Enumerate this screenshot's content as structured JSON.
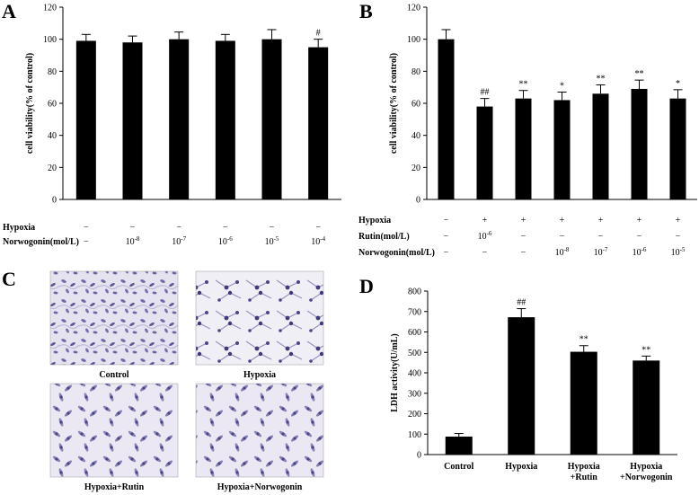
{
  "panels": {
    "a": "A",
    "b": "B",
    "c": "C",
    "d": "D"
  },
  "chart_data": [
    {
      "panel": "A",
      "type": "bar",
      "ylabel": "cell viability(% of control)",
      "ylim": [
        0,
        120
      ],
      "yticks": [
        0,
        20,
        40,
        60,
        80,
        100,
        120
      ],
      "values": [
        99,
        98,
        100,
        99,
        100,
        95
      ],
      "errors": [
        4,
        4,
        4.5,
        4,
        6,
        5
      ],
      "annotations": [
        "",
        "",
        "",
        "",
        "",
        "#"
      ],
      "rows": [
        {
          "label": "Hypoxia",
          "cells": [
            "−",
            "−",
            "−",
            "−",
            "−",
            "−"
          ]
        },
        {
          "label": "Norwogonin(mol/L)",
          "cells": [
            "−",
            "10",
            "10",
            "10",
            "10",
            "10"
          ],
          "sup": [
            "",
            "-8",
            "-7",
            "-6",
            "-5",
            "-4"
          ]
        }
      ]
    },
    {
      "panel": "B",
      "type": "bar",
      "ylabel": "cell viability(% of control)",
      "ylim": [
        0,
        120
      ],
      "yticks": [
        0,
        20,
        40,
        60,
        80,
        100,
        120
      ],
      "values": [
        100,
        58,
        63,
        62,
        66,
        69,
        63
      ],
      "errors": [
        6,
        5,
        5,
        5,
        5.5,
        5.5,
        5.5
      ],
      "annotations": [
        "",
        "##",
        "**",
        "*",
        "**",
        "**",
        "*"
      ],
      "rows": [
        {
          "label": "Hypoxia",
          "cells": [
            "−",
            "+",
            "+",
            "+",
            "+",
            "+",
            "+"
          ],
          "sup": [
            "",
            "",
            "",
            "",
            "",
            "",
            ""
          ]
        },
        {
          "label": "Rutin(mol/L)",
          "cells": [
            "−",
            "10",
            "−",
            "−",
            "−",
            "−",
            "−"
          ],
          "sup": [
            "",
            "-6",
            "",
            "",
            "",
            "",
            ""
          ]
        },
        {
          "label": "Norwogonin(mol/L)",
          "cells": [
            "−",
            "−",
            "−",
            "10",
            "10",
            "10",
            "10"
          ],
          "sup": [
            "",
            "",
            "",
            "-8",
            "-7",
            "-6",
            "-5"
          ]
        }
      ]
    },
    {
      "panel": "D",
      "type": "bar",
      "ylabel": "LDH activity(U/mL)",
      "ylim": [
        0,
        800
      ],
      "yticks": [
        0,
        100,
        200,
        300,
        400,
        500,
        600,
        700,
        800
      ],
      "categories": [
        "Control",
        "Hypoxia",
        "Hypoxia\n+Rutin",
        "Hypoxia\n+Norwogonin"
      ],
      "values": [
        88,
        672,
        503,
        460
      ],
      "errors": [
        15,
        42,
        30,
        22
      ],
      "annotations": [
        "",
        "##",
        "**",
        "**"
      ]
    }
  ],
  "micrographs": [
    {
      "caption": "Control"
    },
    {
      "caption": "Hypoxia"
    },
    {
      "caption": "Hypoxia+Rutin"
    },
    {
      "caption": "Hypoxia+Norwogonin"
    }
  ]
}
